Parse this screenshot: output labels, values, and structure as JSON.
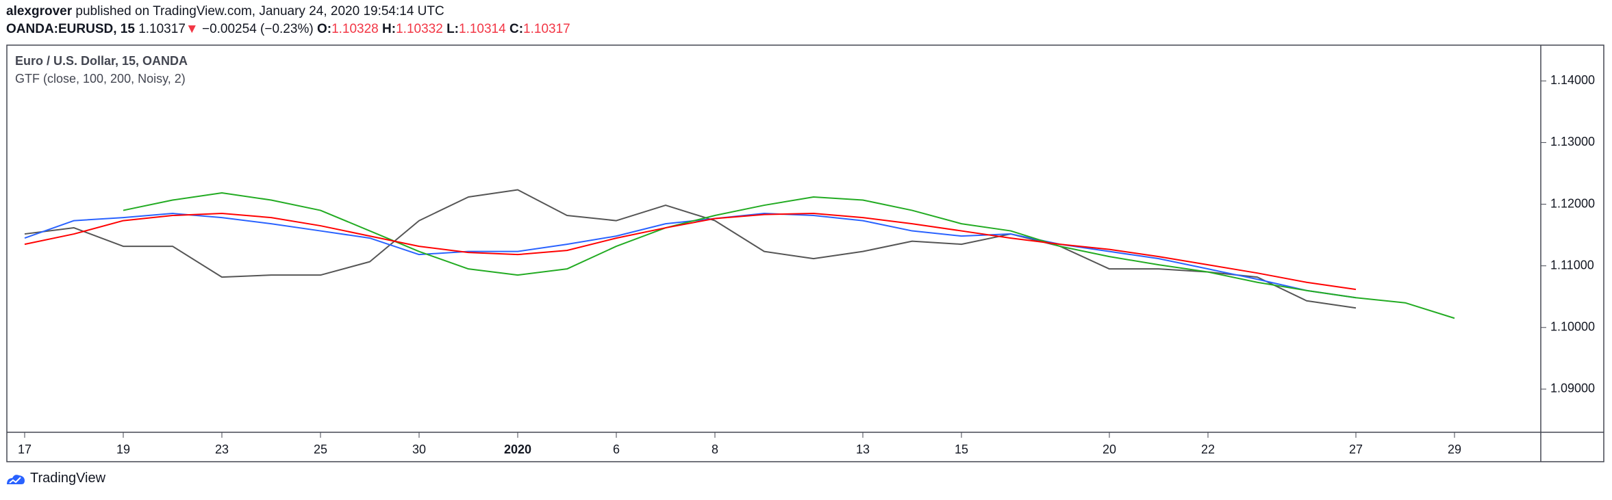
{
  "header": {
    "author": "alexgrover",
    "published": " published on TradingView.com, January 24, 2020 19:54:14 UTC",
    "symbol": "OANDA:EURUSD, 15",
    "last": "1.10317",
    "arrow": "▼",
    "change": "−0.00254 (−0.23%)",
    "open_label": "O:",
    "open": "1.10328",
    "high_label": "H:",
    "high": "1.10332",
    "low_label": "L:",
    "low": "1.10314",
    "close_label": "C:",
    "close": "1.10317"
  },
  "chart_data": {
    "type": "line",
    "title": "Euro / U.S. Dollar, 15, OANDA",
    "subtitle": "GTF (close, 100, 200, Noisy, 2)",
    "categories": [
      "17",
      null,
      "19",
      null,
      "23",
      null,
      "25",
      null,
      "30",
      null,
      "2020",
      null,
      "6",
      null,
      "8",
      null,
      null,
      "13",
      null,
      "15",
      null,
      null,
      "20",
      null,
      "22",
      null,
      null,
      "27",
      null,
      "29",
      null
    ],
    "series": [
      {
        "color": "#555555",
        "values": [
          1.11517,
          1.11617,
          1.11317,
          1.11317,
          1.10817,
          1.1085,
          1.1085,
          1.11067,
          1.11733,
          1.12117,
          1.12233,
          1.11817,
          1.11733,
          1.11983,
          1.11733,
          1.11233,
          1.11117,
          1.11233,
          1.114,
          1.1135,
          1.11517,
          1.11317,
          1.1095,
          1.1095,
          1.109,
          1.10817,
          1.10433,
          1.10317,
          null,
          null,
          null
        ]
      },
      {
        "color": "#2962ff",
        "values": [
          1.1145,
          1.11733,
          1.11783,
          1.1185,
          1.11783,
          1.11683,
          1.11567,
          1.1145,
          1.11183,
          1.11233,
          1.11233,
          1.1135,
          1.11483,
          1.11683,
          1.11767,
          1.1185,
          1.11817,
          1.11733,
          1.11567,
          1.11483,
          1.11517,
          1.1135,
          1.11233,
          1.11117,
          1.1095,
          1.10783,
          1.106,
          1.10483,
          null,
          null,
          null
        ]
      },
      {
        "color": "#22ab22",
        "values": [
          null,
          null,
          1.119,
          1.12067,
          1.12183,
          1.12067,
          1.119,
          1.11567,
          1.11233,
          1.1095,
          1.1085,
          1.1095,
          1.11317,
          1.11617,
          1.11817,
          1.11983,
          1.12117,
          1.12067,
          1.119,
          1.11683,
          1.11567,
          1.11317,
          1.1115,
          1.11017,
          1.109,
          1.10733,
          1.106,
          1.10483,
          1.104,
          1.1015,
          null
        ]
      },
      {
        "color": "#ff0000",
        "values": [
          1.1135,
          1.11517,
          1.11733,
          1.11817,
          1.1185,
          1.11783,
          1.1165,
          1.11483,
          1.11317,
          1.11217,
          1.11183,
          1.1125,
          1.1145,
          1.11617,
          1.11767,
          1.11833,
          1.1185,
          1.11783,
          1.11683,
          1.11567,
          1.1145,
          1.1135,
          1.11267,
          1.1115,
          1.11017,
          1.10883,
          1.10733,
          1.10617,
          null,
          null,
          null
        ]
      }
    ],
    "ylim": [
      1.083,
      1.1458
    ],
    "yticks": [
      {
        "value": 1.09,
        "label": "1.09000"
      },
      {
        "value": 1.1,
        "label": "1.10000"
      },
      {
        "value": 1.11,
        "label": "1.11000"
      },
      {
        "value": 1.12,
        "label": "1.12000"
      },
      {
        "value": 1.13,
        "label": "1.13000"
      },
      {
        "value": 1.14,
        "label": "1.14000"
      }
    ],
    "grid": false
  },
  "footer": {
    "brand": "TradingView"
  }
}
